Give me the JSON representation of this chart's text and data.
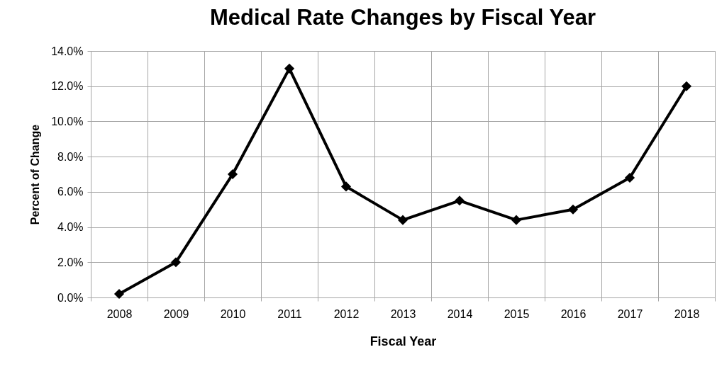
{
  "chart_data": {
    "type": "line",
    "title": "Medical Rate Changes by Fiscal Year",
    "xlabel": "Fiscal Year",
    "ylabel": "Percent of Change",
    "categories": [
      "2008",
      "2009",
      "2010",
      "2011",
      "2012",
      "2013",
      "2014",
      "2015",
      "2016",
      "2017",
      "2018"
    ],
    "series": [
      {
        "color": "#000000",
        "values": [
          0.2,
          2.0,
          7.0,
          13.0,
          6.3,
          4.4,
          5.5,
          4.4,
          5.0,
          6.8,
          12.0
        ]
      }
    ],
    "ylim": [
      0,
      14
    ],
    "yticks": [
      {
        "value": 0,
        "label": "0.0%"
      },
      {
        "value": 2,
        "label": "2.0%"
      },
      {
        "value": 4,
        "label": "4.0%"
      },
      {
        "value": 6,
        "label": "6.0%"
      },
      {
        "value": 8,
        "label": "8.0%"
      },
      {
        "value": 10,
        "label": "10.0%"
      },
      {
        "value": 12,
        "label": "12.0%"
      },
      {
        "value": 14,
        "label": "14.0%"
      }
    ],
    "grid": true,
    "marker": "diamond",
    "line_style": "solid"
  }
}
